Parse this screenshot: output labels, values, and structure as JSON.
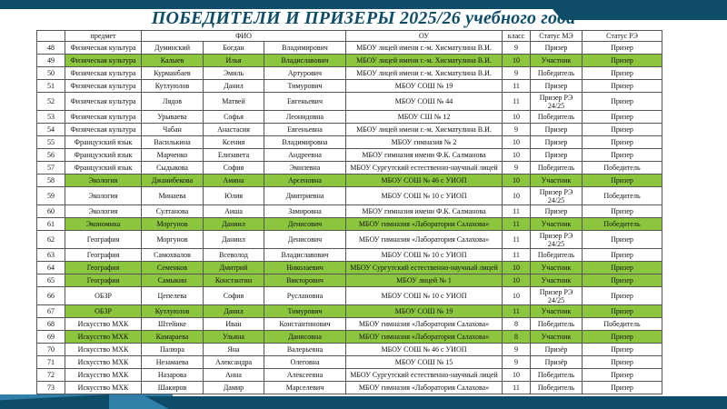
{
  "title": "ПОБЕДИТЕЛИ И ПРИЗЕРЫ 2025/26 учебного года",
  "colors": {
    "banner": "#0e4d68",
    "highlight": "#8cc63f"
  },
  "table": {
    "headers": [
      "",
      "предмет",
      "ФИО",
      "ОУ",
      "класс",
      "Статус МЭ",
      "Статус РЭ"
    ],
    "rows": [
      {
        "n": "48",
        "subject": "Физическая культура",
        "last": "Думинский",
        "first": "Богдан",
        "middle": "Владимирович",
        "school": "МБОУ лицей имени г.-м. Хисматулина В.И.",
        "grade": "9",
        "me": "Призер",
        "re": "Призер",
        "green": false,
        "tall": false
      },
      {
        "n": "49",
        "subject": "Физическая культура",
        "last": "Калыев",
        "first": "Илья",
        "middle": "Владиславович",
        "school": "МБОУ лицей имени г.-м. Хисматулина В.И.",
        "grade": "10",
        "me": "Участник",
        "re": "Призер",
        "green": true,
        "tall": false
      },
      {
        "n": "50",
        "subject": "Физическая культура",
        "last": "Курманбаев",
        "first": "Эмиль",
        "middle": "Артурович",
        "school": "МБОУ лицей имени г.-м. Хисматулина В.И.",
        "grade": "9",
        "me": "Победитель",
        "re": "Призер",
        "green": false,
        "tall": false
      },
      {
        "n": "51",
        "subject": "Физическая культура",
        "last": "Кутлуюлов",
        "first": "Данил",
        "middle": "Тимурович",
        "school": "МБОУ СОШ № 19",
        "grade": "11",
        "me": "Призер",
        "re": "Призер",
        "green": false,
        "tall": false
      },
      {
        "n": "52",
        "subject": "Физическая культура",
        "last": "Лядов",
        "first": "Матвей",
        "middle": "Евгеньевич",
        "school": "МБОУ СОШ № 44",
        "grade": "11",
        "me": "Призер РЭ 24/25",
        "re": "Призер",
        "green": false,
        "tall": true
      },
      {
        "n": "53",
        "subject": "Физическая культура",
        "last": "Урываева",
        "first": "Софья",
        "middle": "Леонидовна",
        "school": "МБОУ СШ № 12",
        "grade": "10",
        "me": "Победитель",
        "re": "Призер",
        "green": false,
        "tall": false
      },
      {
        "n": "54",
        "subject": "Физическая культура",
        "last": "Чабан",
        "first": "Анастасия",
        "middle": "Евгеньевна",
        "school": "МБОУ лицей имени г.-м. Хисматулина В.И.",
        "grade": "9",
        "me": "Призер",
        "re": "Призер",
        "green": false,
        "tall": false
      },
      {
        "n": "55",
        "subject": "Французский язык",
        "last": "Василькина",
        "first": "Ксения",
        "middle": "Владимировна",
        "school": "МБОУ гимназия № 2",
        "grade": "10",
        "me": "Призер",
        "re": "Призер",
        "green": false,
        "tall": false
      },
      {
        "n": "56",
        "subject": "Французский язык",
        "last": "Марченко",
        "first": "Елизавета",
        "middle": "Андреевна",
        "school": "МБОУ гимназия имени Ф.К. Салманова",
        "grade": "10",
        "me": "Призер",
        "re": "Призер",
        "green": false,
        "tall": false
      },
      {
        "n": "57",
        "subject": "Французский язык",
        "last": "Сыдыкова",
        "first": "София",
        "middle": "Эмилевна",
        "school": "МБОУ Сургутский естественно-научный лицей",
        "grade": "9",
        "me": "Победитель",
        "re": "Победитель",
        "green": false,
        "tall": false
      },
      {
        "n": "58",
        "subject": "Экология",
        "last": "Джанибекова",
        "first": "Амина",
        "middle": "Арсеновна",
        "school": "МБОУ СОШ № 46 с УИОП",
        "grade": "10",
        "me": "Участник",
        "re": "Призер",
        "green": true,
        "tall": false
      },
      {
        "n": "59",
        "subject": "Экология",
        "last": "Минаева",
        "first": "Юлия",
        "middle": "Дмитриевна",
        "school": "МБОУ СОШ № 10 с УИОП",
        "grade": "10",
        "me": "Призер РЭ 24/25",
        "re": "Победитель",
        "green": false,
        "tall": true
      },
      {
        "n": "60",
        "subject": "Экология",
        "last": "Султанова",
        "first": "Аиша",
        "middle": "Замировна",
        "school": "МБОУ гимназия имени Ф.К. Салманова",
        "grade": "11",
        "me": "Призер",
        "re": "Призер",
        "green": false,
        "tall": false
      },
      {
        "n": "61",
        "subject": "Экономика",
        "last": "Моргунов",
        "first": "Даниил",
        "middle": "Денисович",
        "school": "МБОУ гимназия «Лаборатория Салахова»",
        "grade": "11",
        "me": "Участник",
        "re": "Победитель",
        "green": true,
        "tall": false
      },
      {
        "n": "62",
        "subject": "География",
        "last": "Моргунов",
        "first": "Даниил",
        "middle": "Денисович",
        "school": "МБОУ гимназия «Лаборатория Салахова»",
        "grade": "11",
        "me": "Призер РЭ 24/25",
        "re": "Призер",
        "green": false,
        "tall": true
      },
      {
        "n": "63",
        "subject": "География",
        "last": "Самохвалов",
        "first": "Всеволод",
        "middle": "Владиславович",
        "school": "МБОУ СОШ № 10 с УИОП",
        "grade": "11",
        "me": "Победитель",
        "re": "Призер",
        "green": false,
        "tall": false
      },
      {
        "n": "64",
        "subject": "География",
        "last": "Семенков",
        "first": "Дмитрий",
        "middle": "Николаевич",
        "school": "МБОУ Сургутский естественно-научный лицей",
        "grade": "10",
        "me": "Участник",
        "re": "Призер",
        "green": true,
        "tall": false
      },
      {
        "n": "65",
        "subject": "География",
        "last": "Самыкин",
        "first": "Константин",
        "middle": "Викторович",
        "school": "МБОУ лицей № 1",
        "grade": "10",
        "me": "Участник",
        "re": "Призер",
        "green": true,
        "tall": false
      },
      {
        "n": "66",
        "subject": "ОБЗР",
        "last": "Цепелева",
        "first": "София",
        "middle": "Руслановна",
        "school": "МБОУ СОШ № 10 с УИОП",
        "grade": "10",
        "me": "Призер РЭ 24/25",
        "re": "Призер",
        "green": false,
        "tall": true
      },
      {
        "n": "67",
        "subject": "ОБЗР",
        "last": "Кутлуюлов",
        "first": "Данил",
        "middle": "Тимурович",
        "school": "МБОУ СОШ № 19",
        "grade": "11",
        "me": "Участник",
        "re": "Призер",
        "green": true,
        "tall": false
      },
      {
        "n": "68",
        "subject": "Искусство МХК",
        "last": "Штейнке",
        "first": "Иван",
        "middle": "Константинович",
        "school": "МБОУ гимназия «Лаборатория Салахова»",
        "grade": "8",
        "me": "Победитель",
        "re": "Победитель",
        "green": false,
        "tall": false
      },
      {
        "n": "69",
        "subject": "Искусство МХК",
        "last": "Камараева",
        "first": "Ульяна",
        "middle": "Данисовна",
        "school": "МБОУ гимназия «Лаборатория Салахова»",
        "grade": "8",
        "me": "Участник",
        "re": "Призер",
        "green": true,
        "tall": false
      },
      {
        "n": "70",
        "subject": "Искусство МХК",
        "last": "Палюра",
        "first": "Яна",
        "middle": "Валерьевна",
        "school": "МБОУ СОШ № 46 с УИОП",
        "grade": "9",
        "me": "Призёр",
        "re": "Призер",
        "green": false,
        "tall": false
      },
      {
        "n": "71",
        "subject": "Искусство МХК",
        "last": "Незамаева",
        "first": "Александра",
        "middle": "Олеговна",
        "school": "МБОУ СОШ № 15",
        "grade": "9",
        "me": "Призёр",
        "re": "Призер",
        "green": false,
        "tall": false
      },
      {
        "n": "72",
        "subject": "Искусство МХК",
        "last": "Назарова",
        "first": "Анна",
        "middle": "Алексеевна",
        "school": "МБОУ Сургутский естественно-научный лицей",
        "grade": "10",
        "me": "Победитель",
        "re": "Призер",
        "green": false,
        "tall": false
      },
      {
        "n": "73",
        "subject": "Искусство МХК",
        "last": "Шакиров",
        "first": "Дамир",
        "middle": "Марселевич",
        "school": "МБОУ гимназия «Лаборатория Салахова»",
        "grade": "11",
        "me": "Победитель",
        "re": "Призер",
        "green": false,
        "tall": false
      }
    ]
  }
}
